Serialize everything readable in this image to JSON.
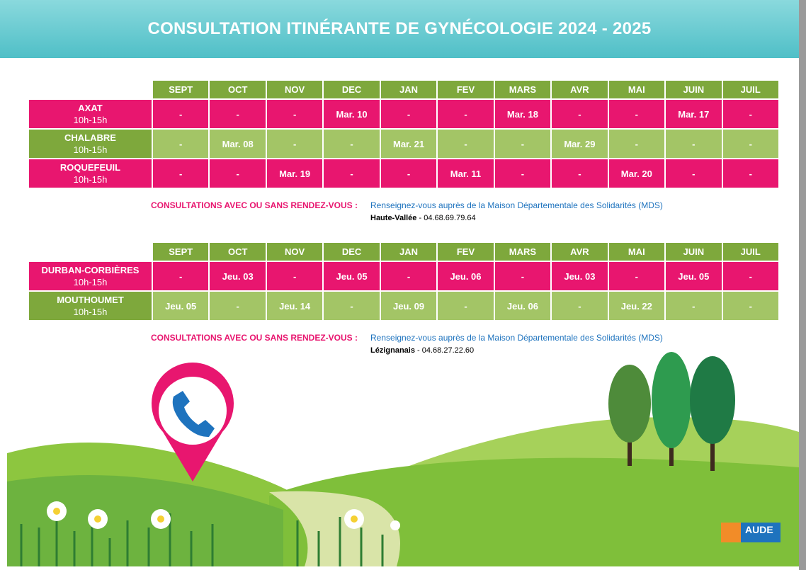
{
  "header": {
    "title": "CONSULTATION ITINÉRANTE DE GYNÉCOLOGIE 2024 - 2025"
  },
  "tables": [
    {
      "months": [
        "SEPT",
        "OCT",
        "NOV",
        "DEC",
        "JAN",
        "FEV",
        "MARS",
        "AVR",
        "MAI",
        "JUIN",
        "JUIL"
      ],
      "rows": [
        {
          "name": "AXAT",
          "hours": "10h-15h",
          "cells": [
            "-",
            "-",
            "-",
            "Mar. 10",
            "-",
            "-",
            "Mar. 18",
            "-",
            "-",
            "Mar. 17",
            "-"
          ]
        },
        {
          "name": "CHALABRE",
          "hours": "10h-15h",
          "cells": [
            "-",
            "Mar. 08",
            "-",
            "-",
            "Mar. 21",
            "-",
            "-",
            "Mar. 29",
            "-",
            "-",
            "-"
          ]
        },
        {
          "name": "ROQUEFEUIL",
          "hours": "10h-15h",
          "cells": [
            "-",
            "-",
            "Mar. 19",
            "-",
            "-",
            "Mar. 11",
            "-",
            "-",
            "Mar. 20",
            "-",
            "-"
          ]
        }
      ],
      "note": {
        "label": "CONSULTATIONS AVEC OU SANS RENDEZ-VOUS :",
        "info": "Renseignez-vous auprès de la Maison Départementale des Solidarités (MDS)",
        "place": "Haute-Vallée",
        "phone": " - 04.68.69.79.64"
      }
    },
    {
      "months": [
        "SEPT",
        "OCT",
        "NOV",
        "DEC",
        "JAN",
        "FEV",
        "MARS",
        "AVR",
        "MAI",
        "JUIN",
        "JUIL"
      ],
      "rows": [
        {
          "name": "DURBAN-CORBIÈRES",
          "hours": "10h-15h",
          "cells": [
            "-",
            "Jeu. 03",
            "-",
            "Jeu. 05",
            "-",
            "Jeu. 06",
            "-",
            "Jeu. 03",
            "-",
            "Jeu. 05",
            "-"
          ]
        },
        {
          "name": "MOUTHOUMET",
          "hours": "10h-15h",
          "cells": [
            "Jeu. 05",
            "-",
            "Jeu. 14",
            "-",
            "Jeu. 09",
            "-",
            "Jeu. 06",
            "-",
            "Jeu. 22",
            "-",
            "-"
          ]
        }
      ],
      "note": {
        "label": "CONSULTATIONS AVEC OU SANS RENDEZ-VOUS :",
        "info": "Renseignez-vous auprès de la Maison Départementale des Solidarités (MDS)",
        "place": "Lézignanais",
        "phone": " - 04.68.27.22.60"
      }
    }
  ],
  "logo": {
    "text": "AUDE"
  }
}
